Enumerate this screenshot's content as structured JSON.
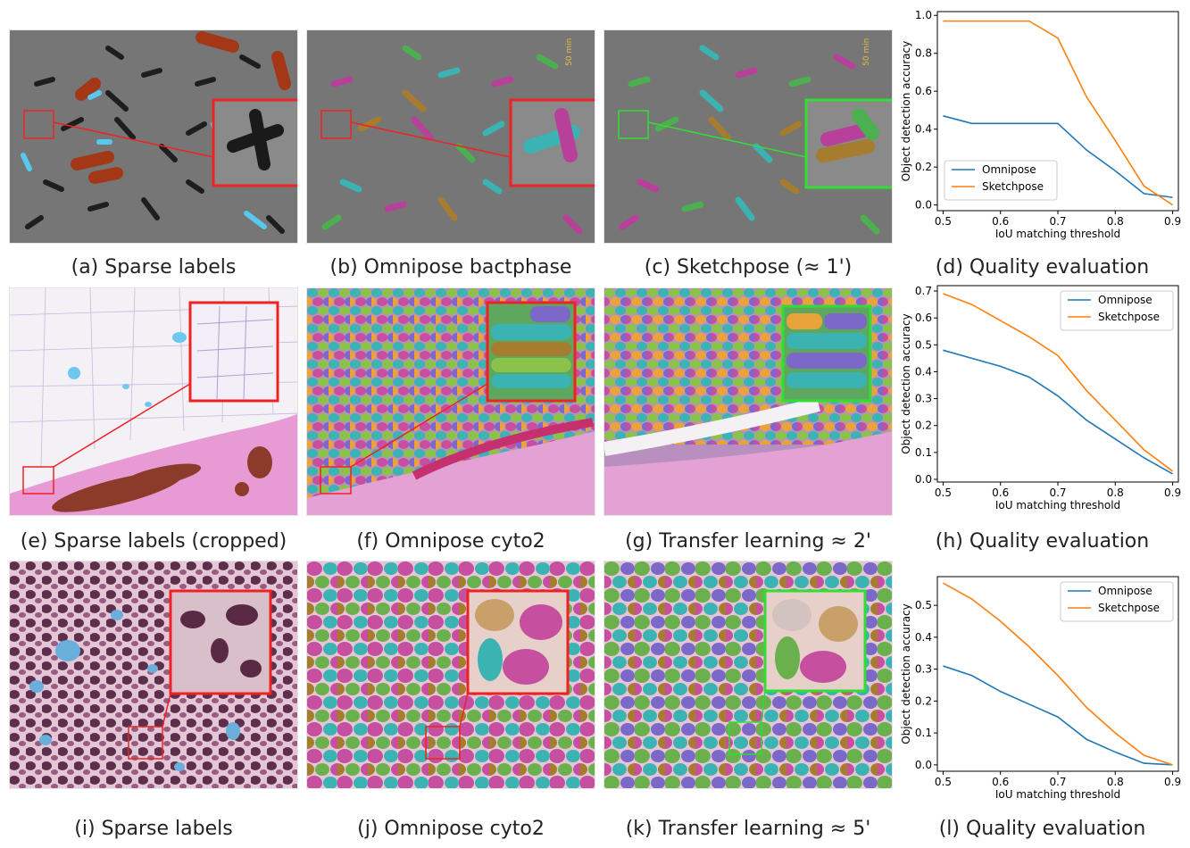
{
  "captions": {
    "a": "(a) Sparse labels",
    "b": "(b) Omnipose bactphase",
    "c": "(c) Sketchpose (≈ 1')",
    "d": "(d) Quality evaluation",
    "e": "(e) Sparse labels (cropped)",
    "f": "(f) Omnipose cyto2",
    "g": "(g) Transfer learning ≈ 2'",
    "h": "(h) Quality evaluation",
    "i": "(i) Sparse labels",
    "j": "(j) Omnipose cyto2",
    "k": "(k) Transfer learning ≈ 5'",
    "l": "(l) Quality evaluation"
  },
  "scale_bar_text": "50 min",
  "colors": {
    "omnipose": "#1f77b4",
    "sketchpose": "#ff7f0e",
    "zoom_red": "#ee2222",
    "zoom_green": "#33dd33"
  },
  "chart_data": [
    {
      "type": "line",
      "xlabel": "IoU matching threshold",
      "ylabel": "Object detection accuracy",
      "x": [
        0.5,
        0.55,
        0.6,
        0.65,
        0.7,
        0.75,
        0.8,
        0.85,
        0.9
      ],
      "xlim": [
        0.49,
        0.91
      ],
      "ylim": [
        -0.03,
        1.02
      ],
      "xticks": [
        "0.5",
        "0.6",
        "0.7",
        "0.8",
        "0.9"
      ],
      "yticks": [
        "0.0",
        "0.2",
        "0.4",
        "0.6",
        "0.8",
        "1.0"
      ],
      "legend_position": "lower-left",
      "series": [
        {
          "name": "Omnipose",
          "values": [
            0.47,
            0.43,
            0.43,
            0.43,
            0.43,
            0.29,
            0.18,
            0.06,
            0.04
          ]
        },
        {
          "name": "Sketchpose",
          "values": [
            0.97,
            0.97,
            0.97,
            0.97,
            0.88,
            0.57,
            0.34,
            0.1,
            0.0
          ]
        }
      ]
    },
    {
      "type": "line",
      "xlabel": "IoU matching threshold",
      "ylabel": "Object detection accuracy",
      "x": [
        0.5,
        0.55,
        0.6,
        0.65,
        0.7,
        0.75,
        0.8,
        0.85,
        0.9
      ],
      "xlim": [
        0.49,
        0.91
      ],
      "ylim": [
        -0.01,
        0.72
      ],
      "xticks": [
        "0.5",
        "0.6",
        "0.7",
        "0.8",
        "0.9"
      ],
      "yticks": [
        "0.0",
        "0.1",
        "0.2",
        "0.3",
        "0.4",
        "0.5",
        "0.6",
        "0.7"
      ],
      "legend_position": "top-right",
      "series": [
        {
          "name": "Omnipose",
          "values": [
            0.48,
            0.45,
            0.42,
            0.38,
            0.31,
            0.22,
            0.15,
            0.08,
            0.02
          ]
        },
        {
          "name": "Sketchpose",
          "values": [
            0.69,
            0.65,
            0.59,
            0.53,
            0.46,
            0.33,
            0.22,
            0.11,
            0.03
          ]
        }
      ]
    },
    {
      "type": "line",
      "xlabel": "IoU matching threshold",
      "ylabel": "Object detection accuracy",
      "x": [
        0.5,
        0.55,
        0.6,
        0.65,
        0.7,
        0.75,
        0.8,
        0.85,
        0.9
      ],
      "xlim": [
        0.49,
        0.91
      ],
      "ylim": [
        -0.02,
        0.59
      ],
      "xticks": [
        "0.5",
        "0.6",
        "0.7",
        "0.8",
        "0.9"
      ],
      "yticks": [
        "0.0",
        "0.1",
        "0.2",
        "0.3",
        "0.4",
        "0.5"
      ],
      "legend_position": "top-right",
      "series": [
        {
          "name": "Omnipose",
          "values": [
            0.31,
            0.28,
            0.23,
            0.19,
            0.15,
            0.08,
            0.04,
            0.005,
            0.0
          ]
        },
        {
          "name": "Sketchpose",
          "values": [
            0.57,
            0.52,
            0.45,
            0.37,
            0.28,
            0.18,
            0.1,
            0.03,
            0.0
          ]
        }
      ]
    }
  ]
}
